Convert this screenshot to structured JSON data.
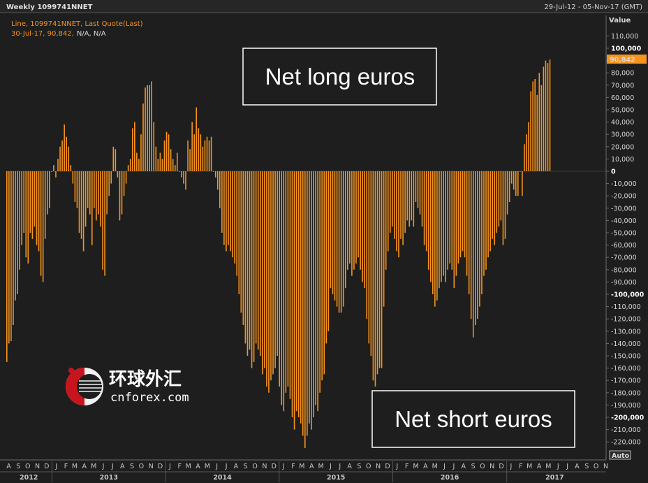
{
  "header": {
    "title": "Weekly 1099741NNET",
    "date_range": "29-Jul-12 - 05-Nov-17 (GMT)",
    "legend_line1": "Line, 1099741NNET, Last Quote(Last)",
    "legend_line2_orange": "30-Jul-17, 90,842,",
    "legend_line2_rest": "N/A, N/A"
  },
  "y_axis": {
    "title": "Value",
    "last_value_badge": "90,842",
    "auto_button": "Auto"
  },
  "callouts": {
    "long": "Net long euros",
    "short": "Net short euros"
  },
  "watermark": {
    "chinese": "环球外汇",
    "site": "cnforex.com"
  },
  "colors": {
    "bar": "#f7941d",
    "background": "#1e1e1e",
    "grid": "#4a4a4a",
    "badge": "#f7941d"
  },
  "chart_data": {
    "type": "bar",
    "title": "Weekly 1099741NNET",
    "ylabel": "Value",
    "xlabel": "",
    "ylim": [
      -230000,
      120000
    ],
    "grid": false,
    "last_value": 90842,
    "last_date": "30-Jul-17",
    "x_start": "2012-08-05",
    "x_end": "2017-11-05",
    "y_ticks": [
      110000,
      100000,
      90000,
      80000,
      70000,
      60000,
      50000,
      40000,
      30000,
      20000,
      10000,
      0,
      -10000,
      -20000,
      -30000,
      -40000,
      -50000,
      -60000,
      -70000,
      -80000,
      -90000,
      -100000,
      -110000,
      -120000,
      -130000,
      -140000,
      -150000,
      -160000,
      -170000,
      -180000,
      -190000,
      -200000,
      -210000,
      -220000
    ],
    "y_tick_labels": [
      "110,000",
      "100,000",
      "90,000",
      "80,000",
      "70,000",
      "60,000",
      "50,000",
      "40,000",
      "30,000",
      "20,000",
      "10,000",
      "0",
      "-10,000",
      "-20,000",
      "-30,000",
      "-40,000",
      "-50,000",
      "-60,000",
      "-70,000",
      "-80,000",
      "-90,000",
      "-100,000",
      "-110,000",
      "-120,000",
      "-130,000",
      "-140,000",
      "-150,000",
      "-160,000",
      "-170,000",
      "-180,000",
      "-190,000",
      "-200,000",
      "-210,000",
      "-220,000"
    ],
    "month_labels": [
      "A",
      "S",
      "O",
      "N",
      "D",
      "J",
      "F",
      "M",
      "A",
      "M",
      "J",
      "J",
      "A",
      "S",
      "O",
      "N",
      "D",
      "J",
      "F",
      "M",
      "A",
      "M",
      "J",
      "J",
      "A",
      "S",
      "O",
      "N",
      "D",
      "J",
      "F",
      "M",
      "A",
      "M",
      "J",
      "J",
      "A",
      "S",
      "O",
      "N",
      "D",
      "J",
      "F",
      "M",
      "A",
      "M",
      "J",
      "J",
      "A",
      "S",
      "O",
      "N",
      "D",
      "J",
      "F",
      "M",
      "A",
      "M",
      "J",
      "J",
      "A",
      "S",
      "O",
      "N"
    ],
    "year_labels": [
      "2012",
      "2013",
      "2014",
      "2015",
      "2016",
      "2017"
    ],
    "values": [
      -155000,
      -140000,
      -138000,
      -125000,
      -105000,
      -100000,
      -80000,
      -60000,
      -50000,
      -70000,
      -75000,
      -50000,
      -55000,
      -45000,
      -60000,
      -65000,
      -85000,
      -90000,
      -55000,
      -35000,
      -30000,
      0,
      5000,
      -5000,
      10000,
      20000,
      25000,
      38000,
      28000,
      20000,
      5000,
      -10000,
      -25000,
      -30000,
      -50000,
      -55000,
      -65000,
      -45000,
      -30000,
      -35000,
      -60000,
      -30000,
      -40000,
      -35000,
      -45000,
      -80000,
      -85000,
      -35000,
      -20000,
      -10000,
      20000,
      18000,
      -5000,
      -40000,
      -35000,
      -20000,
      -10000,
      5000,
      10000,
      35000,
      40000,
      15000,
      10000,
      30000,
      55000,
      68000,
      70000,
      70000,
      73000,
      40000,
      20000,
      10000,
      15000,
      10000,
      25000,
      32000,
      30000,
      18000,
      10000,
      5000,
      15000,
      0,
      -5000,
      -10000,
      -15000,
      25000,
      18000,
      40000,
      30000,
      52000,
      35000,
      30000,
      20000,
      25000,
      28000,
      25000,
      28000,
      0,
      -5000,
      -15000,
      -30000,
      -50000,
      -60000,
      -65000,
      -60000,
      -65000,
      -70000,
      -75000,
      -85000,
      -100000,
      -115000,
      -125000,
      -140000,
      -150000,
      -145000,
      -160000,
      -155000,
      -140000,
      -145000,
      -150000,
      -165000,
      -160000,
      -175000,
      -180000,
      -170000,
      -165000,
      -160000,
      -150000,
      -175000,
      -190000,
      -195000,
      -180000,
      -175000,
      -185000,
      -200000,
      -210000,
      -195000,
      -200000,
      -205000,
      -215000,
      -225000,
      -215000,
      -205000,
      -210000,
      -200000,
      -190000,
      -195000,
      -180000,
      -170000,
      -165000,
      -140000,
      -130000,
      -95000,
      -100000,
      -105000,
      -110000,
      -115000,
      -115000,
      -110000,
      -95000,
      -80000,
      -75000,
      -85000,
      -80000,
      -75000,
      -70000,
      -80000,
      -90000,
      -95000,
      -120000,
      -140000,
      -150000,
      -170000,
      -175000,
      -165000,
      -160000,
      -160000,
      -110000,
      -80000,
      -65000,
      -50000,
      -45000,
      -55000,
      -65000,
      -70000,
      -55000,
      -60000,
      -50000,
      -40000,
      -45000,
      -40000,
      -45000,
      -25000,
      -30000,
      -35000,
      -45000,
      -60000,
      -65000,
      -80000,
      -90000,
      -100000,
      -110000,
      -105000,
      -95000,
      -90000,
      -85000,
      -90000,
      -80000,
      -75000,
      -80000,
      -95000,
      -85000,
      -75000,
      -70000,
      -65000,
      -70000,
      -85000,
      -100000,
      -120000,
      -135000,
      -125000,
      -120000,
      -110000,
      -100000,
      -85000,
      -80000,
      -70000,
      -65000,
      -55000,
      -60000,
      -50000,
      -45000,
      -40000,
      -60000,
      -55000,
      -35000,
      -25000,
      -10000,
      -15000,
      -20000,
      -20000,
      0,
      -20000,
      22000,
      30000,
      40000,
      65000,
      73000,
      75000,
      62000,
      80000,
      70000,
      85000,
      90000,
      88000,
      90842
    ]
  }
}
